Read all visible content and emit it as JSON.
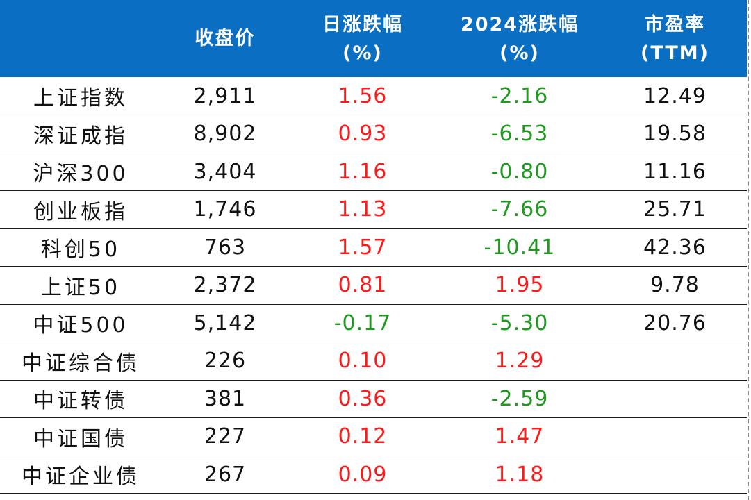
{
  "header": {
    "blank": "",
    "close": "收盘价",
    "day_change": [
      "日涨跌幅",
      "(%)"
    ],
    "ytd_change": [
      "2024涨跌幅",
      "(%)"
    ],
    "pe": [
      "市盈率",
      "(TTM)"
    ]
  },
  "colors": {
    "header_bg": "#0a6fc2",
    "positive": "#ff1a1a",
    "negative": "#1f9a1f",
    "text": "#111111"
  },
  "rows": [
    {
      "name": "上证指数",
      "close": "2,911",
      "day": "1.56",
      "ytd": "-2.16",
      "pe": "12.49"
    },
    {
      "name": "深证成指",
      "close": "8,902",
      "day": "0.93",
      "ytd": "-6.53",
      "pe": "19.58"
    },
    {
      "name": "沪深300",
      "close": "3,404",
      "day": "1.16",
      "ytd": "-0.80",
      "pe": "11.16"
    },
    {
      "name": "创业板指",
      "close": "1,746",
      "day": "1.13",
      "ytd": "-7.66",
      "pe": "25.71"
    },
    {
      "name": "科创50",
      "close": "763",
      "day": "1.57",
      "ytd": "-10.41",
      "pe": "42.36"
    },
    {
      "name": "上证50",
      "close": "2,372",
      "day": "0.81",
      "ytd": "1.95",
      "pe": "9.78"
    },
    {
      "name": "中证500",
      "close": "5,142",
      "day": "-0.17",
      "ytd": "-5.30",
      "pe": "20.76"
    },
    {
      "name": "中证综合债",
      "close": "226",
      "day": "0.10",
      "ytd": "1.29",
      "pe": ""
    },
    {
      "name": "中证转债",
      "close": "381",
      "day": "0.36",
      "ytd": "-2.59",
      "pe": ""
    },
    {
      "name": "中证国债",
      "close": "227",
      "day": "0.12",
      "ytd": "1.47",
      "pe": ""
    },
    {
      "name": "中证企业债",
      "close": "267",
      "day": "0.09",
      "ytd": "1.18",
      "pe": ""
    }
  ]
}
